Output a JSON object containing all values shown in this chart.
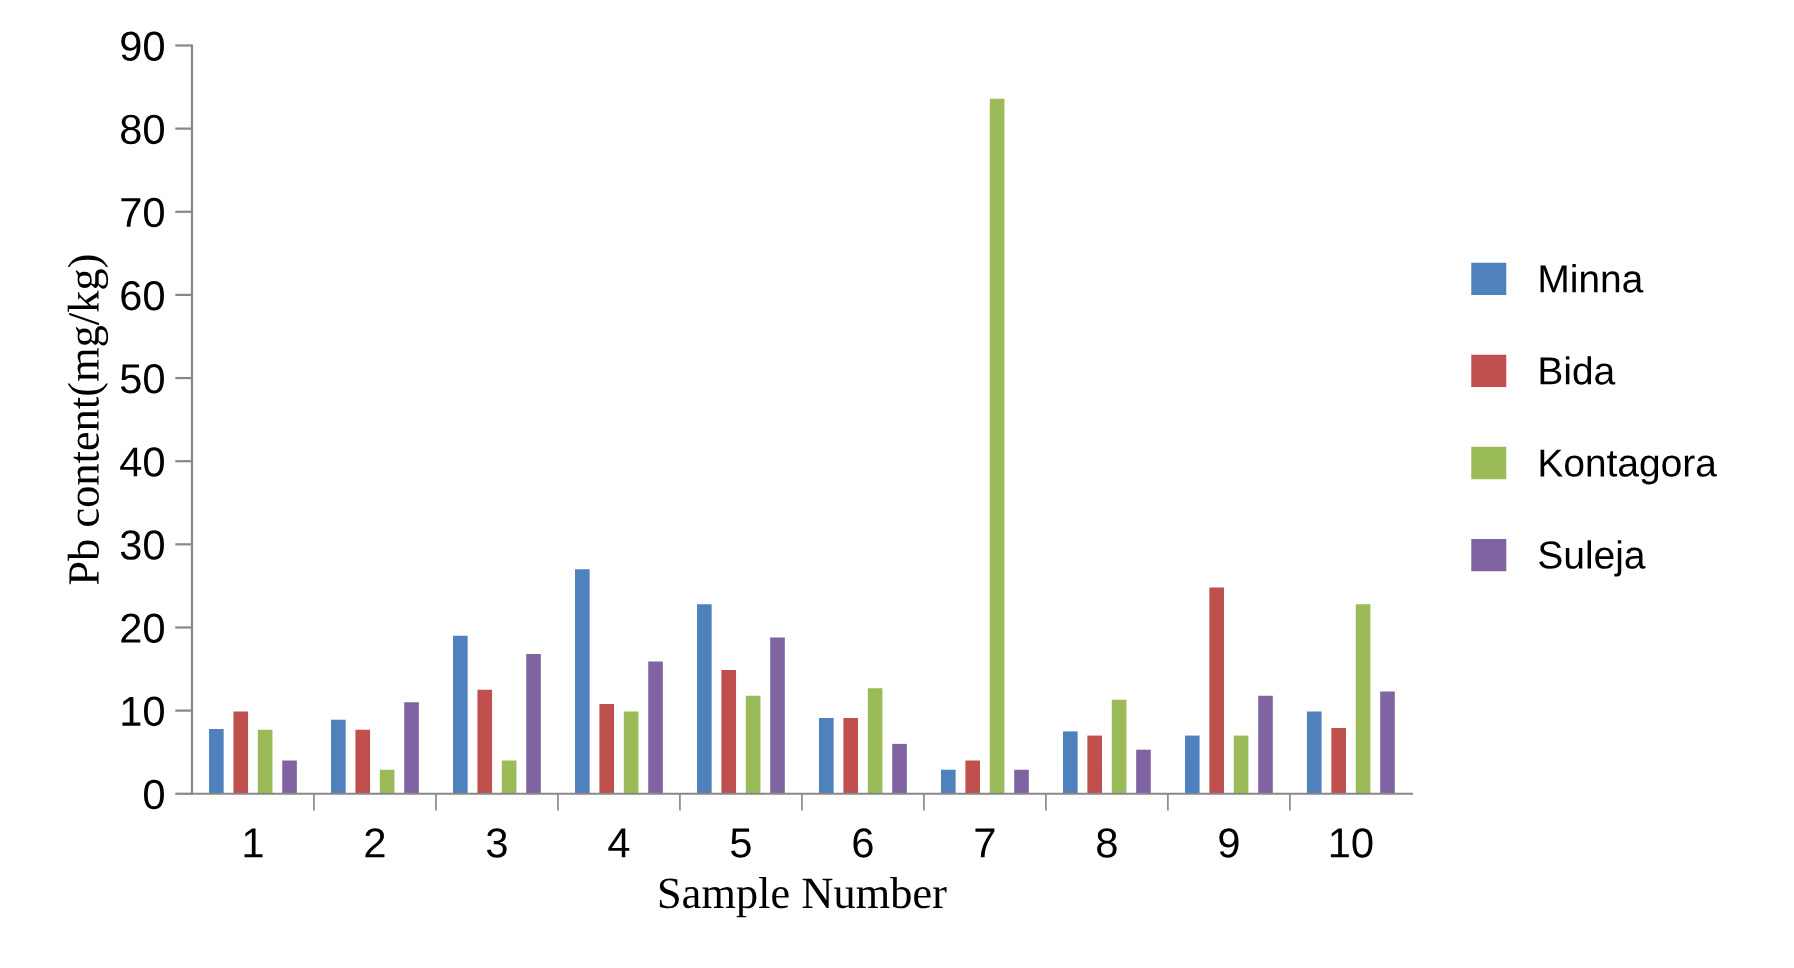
{
  "chart_data": {
    "type": "bar",
    "xlabel": "Sample Number",
    "ylabel": "Pb content(mg/kg)",
    "categories": [
      "1",
      "2",
      "3",
      "4",
      "5",
      "6",
      "7",
      "8",
      "9",
      "10"
    ],
    "series": [
      {
        "name": "Minna",
        "color": "#4f81bd",
        "values": [
          7.8,
          8.9,
          19,
          27,
          22.8,
          9.1,
          2.9,
          7.5,
          7,
          9.9
        ]
      },
      {
        "name": "Bida",
        "color": "#c0504d",
        "values": [
          9.9,
          7.7,
          12.5,
          10.8,
          14.9,
          9.1,
          4,
          7,
          24.8,
          7.9
        ]
      },
      {
        "name": "Kontagora",
        "color": "#9bbb59",
        "values": [
          7.7,
          2.9,
          4,
          9.9,
          11.8,
          12.7,
          83.6,
          11.3,
          7,
          22.8
        ]
      },
      {
        "name": "Suleja",
        "color": "#8064a2",
        "values": [
          4,
          11,
          16.8,
          15.9,
          18.8,
          6,
          2.9,
          5.3,
          11.8,
          12.3
        ]
      }
    ],
    "ylim": [
      0,
      90
    ],
    "yticks": [
      0,
      10,
      20,
      30,
      40,
      50,
      60,
      70,
      80,
      90
    ],
    "grid": false,
    "legend": "right"
  }
}
